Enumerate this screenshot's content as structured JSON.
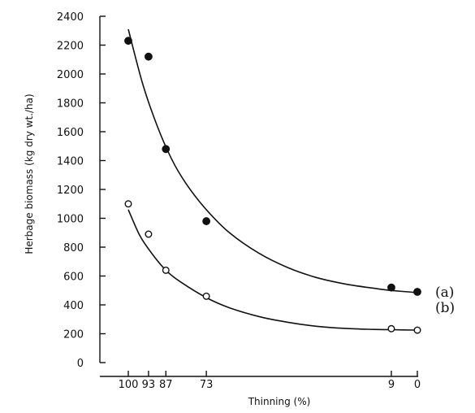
{
  "chart_data": {
    "type": "scatter",
    "xlabel": "Thinning (%)",
    "ylabel": "Herbage biomass (kg dry wt./ha)",
    "ylim": [
      0,
      2400
    ],
    "y_ticks": [
      "0",
      "200",
      "400",
      "600",
      "800",
      "1000",
      "1200",
      "1400",
      "1600",
      "1800",
      "2000",
      "2200",
      "2400"
    ],
    "x_reversed": true,
    "x_ticks": [
      "100",
      "93",
      "87",
      "73",
      "9",
      "0"
    ],
    "grid": false,
    "series": [
      {
        "name": "(a)",
        "marker": "filled-circle",
        "color": "#111111",
        "points": [
          {
            "x": 100,
            "y": 2230
          },
          {
            "x": 93,
            "y": 2120
          },
          {
            "x": 87,
            "y": 1480
          },
          {
            "x": 73,
            "y": 980
          },
          {
            "x": 9,
            "y": 520
          },
          {
            "x": 0,
            "y": 490
          }
        ],
        "fit_curve": [
          {
            "x": 100,
            "y": 2310
          },
          {
            "x": 95,
            "y": 1930
          },
          {
            "x": 90,
            "y": 1640
          },
          {
            "x": 85,
            "y": 1410
          },
          {
            "x": 80,
            "y": 1240
          },
          {
            "x": 73,
            "y": 1060
          },
          {
            "x": 65,
            "y": 900
          },
          {
            "x": 55,
            "y": 760
          },
          {
            "x": 45,
            "y": 660
          },
          {
            "x": 35,
            "y": 590
          },
          {
            "x": 25,
            "y": 545
          },
          {
            "x": 15,
            "y": 515
          },
          {
            "x": 9,
            "y": 500
          },
          {
            "x": 0,
            "y": 485
          }
        ]
      },
      {
        "name": "(b)",
        "marker": "open-circle",
        "color": "#111111",
        "points": [
          {
            "x": 100,
            "y": 1100
          },
          {
            "x": 93,
            "y": 890
          },
          {
            "x": 87,
            "y": 640
          },
          {
            "x": 73,
            "y": 460
          },
          {
            "x": 9,
            "y": 235
          },
          {
            "x": 0,
            "y": 225
          }
        ],
        "fit_curve": [
          {
            "x": 100,
            "y": 1060
          },
          {
            "x": 96,
            "y": 880
          },
          {
            "x": 92,
            "y": 760
          },
          {
            "x": 87,
            "y": 640
          },
          {
            "x": 82,
            "y": 560
          },
          {
            "x": 73,
            "y": 450
          },
          {
            "x": 65,
            "y": 380
          },
          {
            "x": 55,
            "y": 320
          },
          {
            "x": 45,
            "y": 280
          },
          {
            "x": 35,
            "y": 252
          },
          {
            "x": 25,
            "y": 237
          },
          {
            "x": 15,
            "y": 230
          },
          {
            "x": 9,
            "y": 228
          },
          {
            "x": 0,
            "y": 225
          }
        ]
      }
    ]
  }
}
